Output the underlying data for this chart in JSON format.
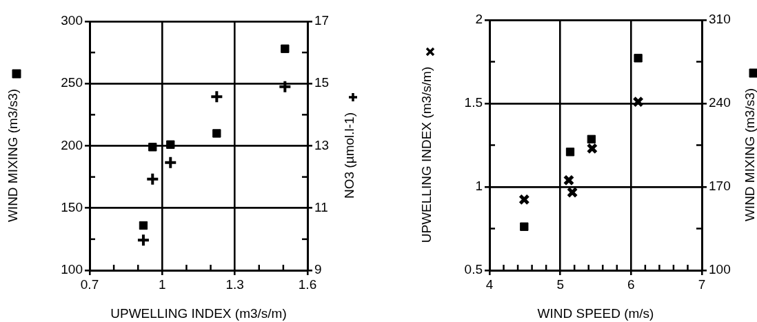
{
  "chart_data": [
    {
      "type": "scatter",
      "xlabel": "UPWELLING INDEX (m3/s/m)",
      "ylabel": "WIND MIXING (m3/s3)",
      "y2label": "NO3 (µmol.l-1)",
      "x": [
        0.922,
        0.96,
        1.034,
        1.225,
        1.507
      ],
      "series": [
        {
          "color": "#000000",
          "marker": "square",
          "axis": "y",
          "values": [
            136,
            199,
            201,
            210,
            278
          ]
        },
        {
          "color": "#000000",
          "marker": "plus",
          "axis": "y2",
          "values": [
            9.97,
            11.93,
            12.46,
            14.58,
            14.9
          ]
        }
      ],
      "xlim": [
        0.7,
        1.6
      ],
      "xticks": [
        0.7,
        {
          "value": 0.8,
          "label": null
        },
        {
          "value": 0.9,
          "label": null
        },
        1,
        {
          "value": 1.1,
          "label": null
        },
        {
          "value": 1.2,
          "label": null
        },
        1.3,
        {
          "value": 1.4,
          "label": null
        },
        {
          "value": 1.5,
          "label": null
        },
        1.6
      ],
      "ylim": [
        100,
        300
      ],
      "yticks": [
        100,
        {
          "value": 125,
          "label": null
        },
        150,
        {
          "value": 175,
          "label": null
        },
        200,
        {
          "value": 225,
          "label": null
        },
        250,
        {
          "value": 275,
          "label": null
        },
        300
      ],
      "y2lim": [
        9,
        17
      ],
      "y2ticks": [
        9,
        {
          "value": 10,
          "label": null
        },
        11,
        {
          "value": 12,
          "label": null
        },
        13,
        {
          "value": 14,
          "label": null
        },
        15,
        {
          "value": 16,
          "label": null
        },
        17
      ],
      "grid": true,
      "legend": false
    },
    {
      "type": "scatter",
      "xlabel": "WIND SPEED (m/s)",
      "ylabel": "UPWELLING INDEX (m3/s/m)",
      "y2label": "WIND MIXING (m3/s3)",
      "series": [
        {
          "color": "#000000",
          "marker": "cross",
          "axis": "y",
          "x": [
            4.49,
            5.12,
            5.17,
            5.45,
            6.1
          ],
          "values": [
            0.924,
            1.04,
            0.967,
            1.23,
            1.51
          ]
        },
        {
          "color": "#000000",
          "marker": "square",
          "axis": "y2",
          "x": [
            4.49,
            5.14,
            5.44,
            6.1
          ],
          "values": [
            136.6,
            199.3,
            210,
            278
          ]
        }
      ],
      "xlim": [
        4,
        7
      ],
      "xticks": [
        4,
        {
          "value": 4.2,
          "label": null
        },
        {
          "value": 4.4,
          "label": null
        },
        {
          "value": 4.6,
          "label": null
        },
        {
          "value": 4.8,
          "label": null
        },
        5,
        {
          "value": 5.2,
          "label": null
        },
        {
          "value": 5.4,
          "label": null
        },
        {
          "value": 5.6,
          "label": null
        },
        {
          "value": 5.8,
          "label": null
        },
        6,
        {
          "value": 6.2,
          "label": null
        },
        {
          "value": 6.4,
          "label": null
        },
        {
          "value": 6.6,
          "label": null
        },
        {
          "value": 6.8,
          "label": null
        },
        7
      ],
      "ylim": [
        0.5,
        2
      ],
      "yticks": [
        0.5,
        {
          "value": 0.75,
          "label": null
        },
        1,
        {
          "value": 1.25,
          "label": null
        },
        1.5,
        {
          "value": 1.75,
          "label": null
        },
        2
      ],
      "y2lim": [
        100,
        310
      ],
      "y2ticks": [
        100,
        {
          "value": 135,
          "label": null
        },
        170,
        {
          "value": 205,
          "label": null
        },
        240,
        {
          "value": 275,
          "label": null
        },
        310
      ],
      "grid": true,
      "legend": false
    }
  ]
}
